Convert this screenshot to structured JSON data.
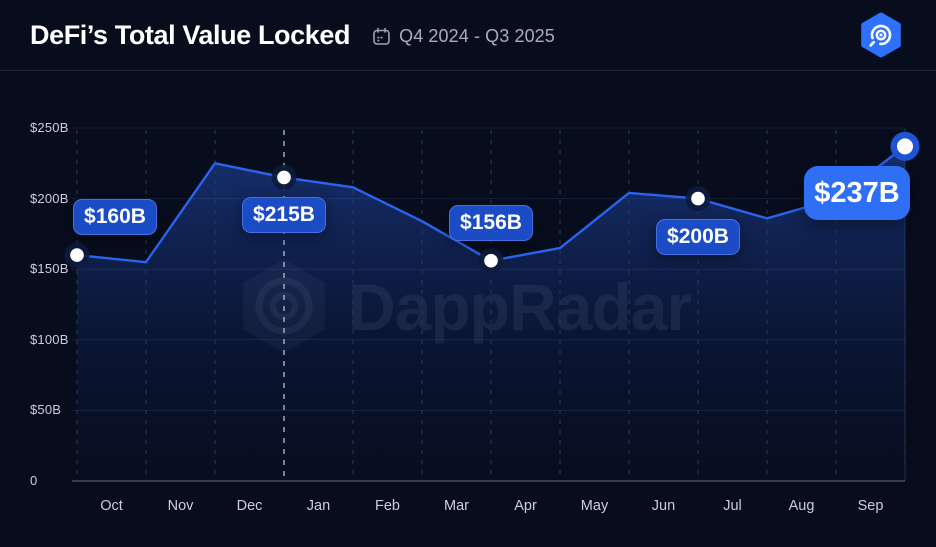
{
  "header": {
    "title": "DeFi’s Total Value Locked",
    "period": "Q4 2024 - Q3 2025"
  },
  "icons": {
    "calendar": "calendar-icon",
    "logo": "dappradar-logo-icon"
  },
  "watermark": {
    "text": "DappRadar"
  },
  "chart_data": {
    "type": "area",
    "title": "DeFi’s Total Value Locked",
    "period": "Q4 2024 - Q3 2025",
    "unit": "USD billions",
    "x_tick_labels": [
      "Oct",
      "Nov",
      "Dec",
      "Jan",
      "Feb",
      "Mar",
      "Apr",
      "May",
      "Jun",
      "Jul",
      "Aug",
      "Sep"
    ],
    "values": [
      160,
      155,
      225,
      215,
      208,
      184,
      156,
      165,
      204,
      200,
      186,
      200,
      237
    ],
    "y_ticks": [
      {
        "label": "$250B",
        "value": 250
      },
      {
        "label": "$200B",
        "value": 200
      },
      {
        "label": "$150B",
        "value": 150
      },
      {
        "label": "$100B",
        "value": 100
      },
      {
        "label": "$50B",
        "value": 50
      },
      {
        "label": "0",
        "value": 0
      }
    ],
    "ylim": [
      0,
      250
    ],
    "grid": {
      "horizontal": "solid",
      "vertical": "dashed"
    },
    "highlight_point_index": 3,
    "callouts": [
      {
        "label": "$160B",
        "point_index": 0,
        "variant": "small",
        "placement": "above",
        "dx": 38
      },
      {
        "label": "$215B",
        "point_index": 3,
        "variant": "small",
        "placement": "below",
        "dx": 0
      },
      {
        "label": "$156B",
        "point_index": 6,
        "variant": "small",
        "placement": "above",
        "dx": 0
      },
      {
        "label": "$200B",
        "point_index": 9,
        "variant": "small",
        "placement": "below",
        "dx": 0
      },
      {
        "label": "$237B",
        "point_index": 12,
        "variant": "large",
        "placement": "below",
        "dx": -48
      }
    ],
    "colors": {
      "background": "#070d1d",
      "line": "#2b63ef",
      "area_top": "rgba(45,100,235,0.40)",
      "area_bottom": "rgba(25,60,160,0.02)",
      "grid_horizontal": "#141f38",
      "grid_vertical": "#2c3954",
      "grid_highlight": "#b6c0d2",
      "baseline": "#4b556d",
      "callout_small_bg": "#1b4cc6",
      "callout_large_bg": "#2e6ff6",
      "accent_logo": "#2e71ff"
    }
  }
}
